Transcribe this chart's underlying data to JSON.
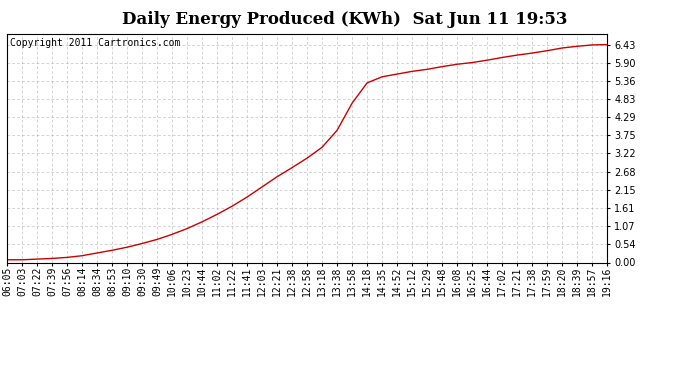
{
  "title": "Daily Energy Produced (KWh)  Sat Jun 11 19:53",
  "copyright_text": "Copyright 2011 Cartronics.com",
  "line_color": "#cc0000",
  "bg_color": "#ffffff",
  "plot_bg_color": "#ffffff",
  "grid_color": "#999999",
  "yticks": [
    0.0,
    0.54,
    1.07,
    1.61,
    2.15,
    2.68,
    3.22,
    3.75,
    4.29,
    4.83,
    5.36,
    5.9,
    6.43
  ],
  "ylim": [
    0.0,
    6.75
  ],
  "x_labels": [
    "06:05",
    "07:03",
    "07:22",
    "07:39",
    "07:56",
    "08:14",
    "08:34",
    "08:53",
    "09:10",
    "09:30",
    "09:49",
    "10:06",
    "10:23",
    "10:44",
    "11:02",
    "11:22",
    "11:41",
    "12:03",
    "12:21",
    "12:38",
    "12:58",
    "13:18",
    "13:38",
    "13:58",
    "14:18",
    "14:35",
    "14:52",
    "15:12",
    "15:29",
    "15:48",
    "16:08",
    "16:25",
    "16:44",
    "17:02",
    "17:21",
    "17:38",
    "17:59",
    "18:20",
    "18:39",
    "18:57",
    "19:16"
  ],
  "y_values": [
    0.08,
    0.08,
    0.1,
    0.12,
    0.15,
    0.2,
    0.28,
    0.36,
    0.45,
    0.56,
    0.68,
    0.83,
    1.0,
    1.2,
    1.42,
    1.66,
    1.93,
    2.23,
    2.53,
    2.8,
    3.08,
    3.4,
    3.9,
    4.7,
    5.3,
    5.48,
    5.56,
    5.64,
    5.7,
    5.78,
    5.85,
    5.9,
    5.97,
    6.05,
    6.12,
    6.18,
    6.25,
    6.33,
    6.38,
    6.42,
    6.43
  ],
  "title_fontsize": 12,
  "tick_fontsize": 7,
  "copyright_fontsize": 7
}
